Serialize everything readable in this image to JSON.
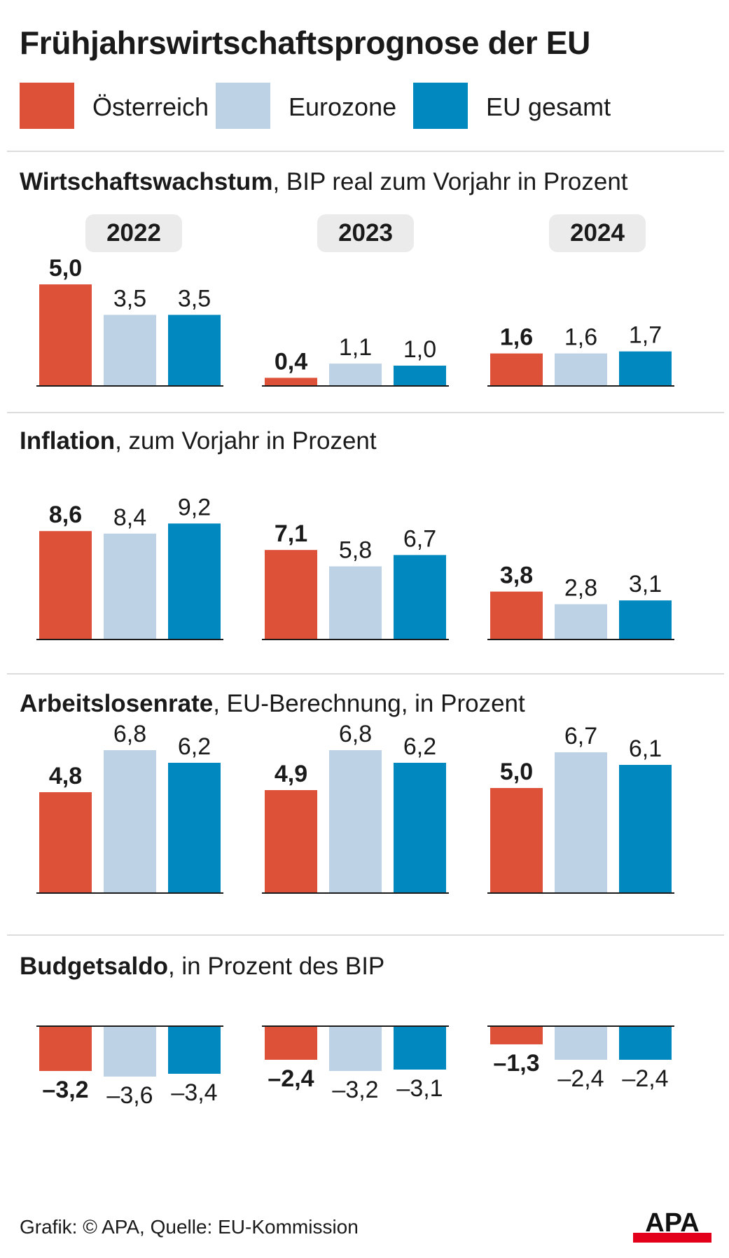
{
  "title": "Frühjahrswirtschaftsprognose der EU",
  "legend": [
    {
      "label": "Österreich",
      "color": "#dd5138"
    },
    {
      "label": "Eurozone",
      "color": "#bed2e6"
    },
    {
      "label": "EU gesamt",
      "color": "#0088bf"
    }
  ],
  "years": [
    "2022",
    "2023",
    "2024"
  ],
  "sections": [
    {
      "title_bold": "Wirtschaftswachstum",
      "title_rest": ", BIP real zum Vorjahr in Prozent"
    },
    {
      "title_bold": "Inflation",
      "title_rest": ", zum Vorjahr in Prozent"
    },
    {
      "title_bold": "Arbeitslosenrate",
      "title_rest": ", EU-Berechnung, in Prozent"
    },
    {
      "title_bold": "Budgetsaldo",
      "title_rest": ", in Prozent des BIP"
    }
  ],
  "chart_data": [
    {
      "type": "bar",
      "title": "Wirtschaftswachstum, BIP real zum Vorjahr in Prozent",
      "categories": [
        "2022",
        "2023",
        "2024"
      ],
      "series": [
        {
          "name": "Österreich",
          "values": [
            5.0,
            0.4,
            1.6
          ],
          "labels": [
            "5,0",
            "0,4",
            "1,6"
          ]
        },
        {
          "name": "Eurozone",
          "values": [
            3.5,
            1.1,
            1.6
          ],
          "labels": [
            "3,5",
            "1,1",
            "1,6"
          ]
        },
        {
          "name": "EU gesamt",
          "values": [
            3.5,
            1.0,
            1.7
          ],
          "labels": [
            "3,5",
            "1,0",
            "1,7"
          ]
        }
      ]
    },
    {
      "type": "bar",
      "title": "Inflation, zum Vorjahr in Prozent",
      "categories": [
        "2022",
        "2023",
        "2024"
      ],
      "series": [
        {
          "name": "Österreich",
          "values": [
            8.6,
            7.1,
            3.8
          ],
          "labels": [
            "8,6",
            "7,1",
            "3,8"
          ]
        },
        {
          "name": "Eurozone",
          "values": [
            8.4,
            5.8,
            2.8
          ],
          "labels": [
            "8,4",
            "5,8",
            "2,8"
          ]
        },
        {
          "name": "EU gesamt",
          "values": [
            9.2,
            6.7,
            3.1
          ],
          "labels": [
            "9,2",
            "6,7",
            "3,1"
          ]
        }
      ]
    },
    {
      "type": "bar",
      "title": "Arbeitslosenrate, EU-Berechnung, in Prozent",
      "categories": [
        "2022",
        "2023",
        "2024"
      ],
      "series": [
        {
          "name": "Österreich",
          "values": [
            4.8,
            4.9,
            5.0
          ],
          "labels": [
            "4,8",
            "4,9",
            "5,0"
          ]
        },
        {
          "name": "Eurozone",
          "values": [
            6.8,
            6.8,
            6.7
          ],
          "labels": [
            "6,8",
            "6,8",
            "6,7"
          ]
        },
        {
          "name": "EU gesamt",
          "values": [
            6.2,
            6.2,
            6.1
          ],
          "labels": [
            "6,2",
            "6,2",
            "6,1"
          ]
        }
      ]
    },
    {
      "type": "bar",
      "title": "Budgetsaldo, in Prozent des BIP",
      "categories": [
        "2022",
        "2023",
        "2024"
      ],
      "series": [
        {
          "name": "Österreich",
          "values": [
            -3.2,
            -2.4,
            -1.3
          ],
          "labels": [
            "–3,2",
            "–2,4",
            "–1,3"
          ]
        },
        {
          "name": "Eurozone",
          "values": [
            -3.6,
            -3.2,
            -2.4
          ],
          "labels": [
            "–3,6",
            "–3,2",
            "–2,4"
          ]
        },
        {
          "name": "EU gesamt",
          "values": [
            -3.4,
            -3.1,
            -2.4
          ],
          "labels": [
            "–3,4",
            "–3,1",
            "–2,4"
          ]
        }
      ]
    }
  ],
  "footer": "Grafik: © APA, Quelle: EU-Kommission",
  "logo_text": "APA"
}
